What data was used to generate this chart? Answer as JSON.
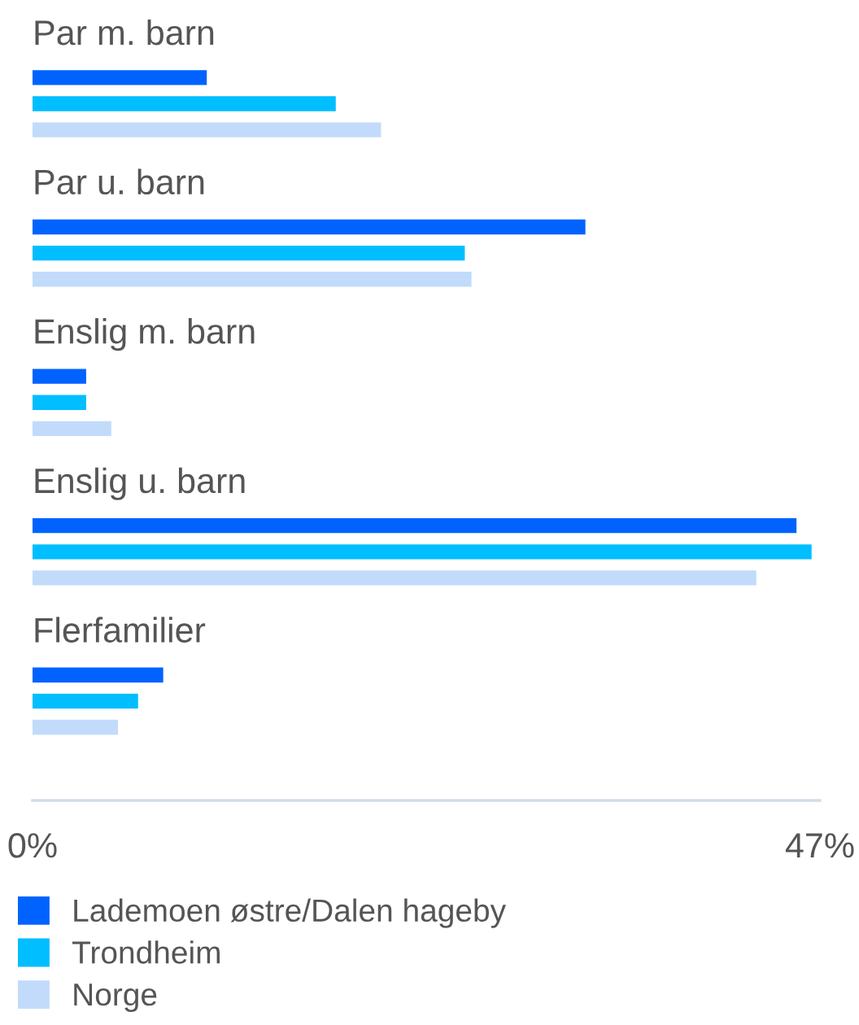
{
  "chart_data": {
    "type": "bar",
    "orientation": "horizontal",
    "categories": [
      "Par m. barn",
      "Par u. barn",
      "Enslig m. barn",
      "Enslig u. barn",
      "Flerfamilier"
    ],
    "series": [
      {
        "name": "Lademoen østre/Dalen hageby",
        "color": "#0063ff",
        "values": [
          10.4,
          33.0,
          3.2,
          45.6,
          7.8
        ]
      },
      {
        "name": "Trondheim",
        "color": "#00beff",
        "values": [
          18.1,
          25.8,
          3.2,
          46.5,
          6.3
        ]
      },
      {
        "name": "Norge",
        "color": "#c2dbfb",
        "values": [
          20.8,
          26.2,
          4.7,
          43.2,
          5.1
        ]
      }
    ],
    "xlim": [
      0,
      47
    ],
    "xticks": [
      {
        "value": 0,
        "label": "0%"
      },
      {
        "value": 47,
        "label": "47%"
      }
    ],
    "legend": "bottom"
  }
}
